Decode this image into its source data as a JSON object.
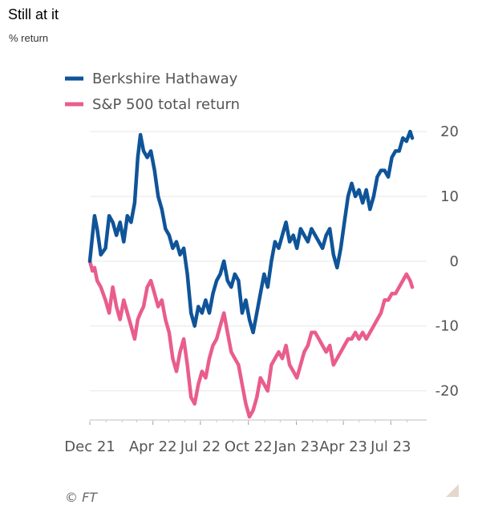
{
  "header": {
    "title": "Still at it",
    "subtitle": "% return"
  },
  "footer": {
    "source": "© FT"
  },
  "chart_data": {
    "type": "line",
    "title": "Still at it",
    "ylabel": "% return",
    "xlabel": "",
    "ylim": [
      -24.5,
      21
    ],
    "xlim": [
      "2021-12-01",
      "2023-08-31"
    ],
    "grid": true,
    "legend_position": "top-left",
    "y_ticks": [
      20,
      10,
      0,
      -10,
      -20
    ],
    "y_tick_labels": [
      "20",
      "10",
      "0",
      "-10",
      "-20"
    ],
    "x_ticks": [
      "2021-12-01",
      "2022-04-01",
      "2022-07-01",
      "2022-10-01",
      "2023-01-01",
      "2023-04-01",
      "2023-07-01"
    ],
    "x_tick_labels": [
      "Dec 21",
      "Apr 22",
      "Jul 22",
      "Oct 22",
      "Jan 23",
      "Apr 23",
      "Jul 23"
    ],
    "series": [
      {
        "name": "Berkshire Hathaway",
        "color": "#0f5499",
        "points": [
          [
            "2021-12-01",
            0
          ],
          [
            "2021-12-06",
            4
          ],
          [
            "2021-12-10",
            7
          ],
          [
            "2021-12-15",
            5
          ],
          [
            "2021-12-22",
            1
          ],
          [
            "2021-12-31",
            2
          ],
          [
            "2022-01-07",
            7
          ],
          [
            "2022-01-14",
            6
          ],
          [
            "2022-01-21",
            4
          ],
          [
            "2022-01-28",
            6
          ],
          [
            "2022-02-04",
            3
          ],
          [
            "2022-02-11",
            7
          ],
          [
            "2022-02-18",
            6
          ],
          [
            "2022-02-25",
            9
          ],
          [
            "2022-03-03",
            16
          ],
          [
            "2022-03-08",
            19.5
          ],
          [
            "2022-03-14",
            17
          ],
          [
            "2022-03-21",
            16
          ],
          [
            "2022-03-28",
            17
          ],
          [
            "2022-04-04",
            14
          ],
          [
            "2022-04-11",
            10
          ],
          [
            "2022-04-18",
            8
          ],
          [
            "2022-04-25",
            5
          ],
          [
            "2022-05-02",
            4
          ],
          [
            "2022-05-09",
            2
          ],
          [
            "2022-05-16",
            3
          ],
          [
            "2022-05-23",
            1
          ],
          [
            "2022-05-30",
            2
          ],
          [
            "2022-06-06",
            -2
          ],
          [
            "2022-06-13",
            -8
          ],
          [
            "2022-06-20",
            -10
          ],
          [
            "2022-06-27",
            -7
          ],
          [
            "2022-07-04",
            -8
          ],
          [
            "2022-07-11",
            -6
          ],
          [
            "2022-07-18",
            -8
          ],
          [
            "2022-07-25",
            -5
          ],
          [
            "2022-08-01",
            -3
          ],
          [
            "2022-08-08",
            -2
          ],
          [
            "2022-08-15",
            0
          ],
          [
            "2022-08-22",
            -3
          ],
          [
            "2022-08-29",
            -4
          ],
          [
            "2022-09-05",
            -2
          ],
          [
            "2022-09-12",
            -3
          ],
          [
            "2022-09-19",
            -8
          ],
          [
            "2022-09-26",
            -6
          ],
          [
            "2022-10-03",
            -9
          ],
          [
            "2022-10-10",
            -11
          ],
          [
            "2022-10-17",
            -8
          ],
          [
            "2022-10-24",
            -5
          ],
          [
            "2022-10-31",
            -2
          ],
          [
            "2022-11-07",
            -4
          ],
          [
            "2022-11-14",
            0
          ],
          [
            "2022-11-21",
            3
          ],
          [
            "2022-11-28",
            2
          ],
          [
            "2022-12-05",
            4
          ],
          [
            "2022-12-12",
            6
          ],
          [
            "2022-12-19",
            3
          ],
          [
            "2022-12-26",
            4
          ],
          [
            "2023-01-02",
            2
          ],
          [
            "2023-01-09",
            5
          ],
          [
            "2023-01-16",
            4
          ],
          [
            "2023-01-23",
            3
          ],
          [
            "2023-01-30",
            5
          ],
          [
            "2023-02-06",
            4
          ],
          [
            "2023-02-13",
            3
          ],
          [
            "2023-02-20",
            2
          ],
          [
            "2023-02-27",
            4
          ],
          [
            "2023-03-06",
            5
          ],
          [
            "2023-03-13",
            1
          ],
          [
            "2023-03-20",
            -1
          ],
          [
            "2023-03-27",
            2
          ],
          [
            "2023-04-03",
            6
          ],
          [
            "2023-04-10",
            10
          ],
          [
            "2023-04-17",
            12
          ],
          [
            "2023-04-24",
            10
          ],
          [
            "2023-05-01",
            11
          ],
          [
            "2023-05-08",
            9
          ],
          [
            "2023-05-15",
            11
          ],
          [
            "2023-05-22",
            8
          ],
          [
            "2023-05-29",
            10
          ],
          [
            "2023-06-05",
            13
          ],
          [
            "2023-06-12",
            14
          ],
          [
            "2023-06-19",
            14
          ],
          [
            "2023-06-26",
            13
          ],
          [
            "2023-07-03",
            16
          ],
          [
            "2023-07-10",
            17
          ],
          [
            "2023-07-17",
            17
          ],
          [
            "2023-07-24",
            19
          ],
          [
            "2023-07-31",
            18.5
          ],
          [
            "2023-08-07",
            20
          ],
          [
            "2023-08-11",
            19
          ]
        ]
      },
      {
        "name": "S&P 500 total return",
        "color": "#e95d8c",
        "points": [
          [
            "2021-12-01",
            0
          ],
          [
            "2021-12-06",
            -1.5
          ],
          [
            "2021-12-10",
            -1
          ],
          [
            "2021-12-15",
            -3
          ],
          [
            "2021-12-22",
            -4
          ],
          [
            "2021-12-31",
            -6
          ],
          [
            "2022-01-07",
            -8
          ],
          [
            "2022-01-14",
            -4
          ],
          [
            "2022-01-21",
            -7
          ],
          [
            "2022-01-28",
            -9
          ],
          [
            "2022-02-04",
            -6
          ],
          [
            "2022-02-11",
            -8
          ],
          [
            "2022-02-18",
            -10
          ],
          [
            "2022-02-25",
            -12
          ],
          [
            "2022-03-03",
            -9
          ],
          [
            "2022-03-08",
            -8
          ],
          [
            "2022-03-14",
            -7
          ],
          [
            "2022-03-21",
            -4
          ],
          [
            "2022-03-28",
            -3
          ],
          [
            "2022-04-04",
            -5
          ],
          [
            "2022-04-11",
            -7
          ],
          [
            "2022-04-18",
            -6
          ],
          [
            "2022-04-25",
            -9
          ],
          [
            "2022-05-02",
            -11
          ],
          [
            "2022-05-09",
            -15
          ],
          [
            "2022-05-16",
            -17
          ],
          [
            "2022-05-23",
            -14
          ],
          [
            "2022-05-30",
            -12
          ],
          [
            "2022-06-06",
            -16
          ],
          [
            "2022-06-13",
            -21
          ],
          [
            "2022-06-20",
            -22
          ],
          [
            "2022-06-27",
            -19
          ],
          [
            "2022-07-04",
            -17
          ],
          [
            "2022-07-11",
            -18
          ],
          [
            "2022-07-18",
            -15
          ],
          [
            "2022-07-25",
            -13
          ],
          [
            "2022-08-01",
            -12
          ],
          [
            "2022-08-08",
            -10
          ],
          [
            "2022-08-15",
            -8
          ],
          [
            "2022-08-22",
            -11
          ],
          [
            "2022-08-29",
            -14
          ],
          [
            "2022-09-05",
            -15
          ],
          [
            "2022-09-12",
            -16
          ],
          [
            "2022-09-19",
            -19
          ],
          [
            "2022-09-26",
            -22
          ],
          [
            "2022-10-03",
            -24
          ],
          [
            "2022-10-10",
            -23
          ],
          [
            "2022-10-17",
            -21
          ],
          [
            "2022-10-24",
            -18
          ],
          [
            "2022-10-31",
            -19
          ],
          [
            "2022-11-07",
            -20
          ],
          [
            "2022-11-14",
            -16
          ],
          [
            "2022-11-21",
            -15
          ],
          [
            "2022-11-28",
            -14
          ],
          [
            "2022-12-05",
            -15
          ],
          [
            "2022-12-12",
            -13
          ],
          [
            "2022-12-19",
            -16
          ],
          [
            "2022-12-26",
            -17
          ],
          [
            "2023-01-02",
            -18
          ],
          [
            "2023-01-09",
            -16
          ],
          [
            "2023-01-16",
            -14
          ],
          [
            "2023-01-23",
            -13
          ],
          [
            "2023-01-30",
            -11
          ],
          [
            "2023-02-06",
            -11
          ],
          [
            "2023-02-13",
            -12
          ],
          [
            "2023-02-20",
            -13
          ],
          [
            "2023-02-27",
            -14
          ],
          [
            "2023-03-06",
            -13
          ],
          [
            "2023-03-13",
            -16
          ],
          [
            "2023-03-20",
            -15
          ],
          [
            "2023-03-27",
            -14
          ],
          [
            "2023-04-03",
            -13
          ],
          [
            "2023-04-10",
            -12
          ],
          [
            "2023-04-17",
            -12
          ],
          [
            "2023-04-24",
            -11
          ],
          [
            "2023-05-01",
            -12
          ],
          [
            "2023-05-08",
            -11
          ],
          [
            "2023-05-15",
            -12
          ],
          [
            "2023-05-22",
            -11
          ],
          [
            "2023-05-29",
            -10
          ],
          [
            "2023-06-05",
            -9
          ],
          [
            "2023-06-12",
            -8
          ],
          [
            "2023-06-19",
            -6
          ],
          [
            "2023-06-26",
            -6
          ],
          [
            "2023-07-03",
            -5
          ],
          [
            "2023-07-10",
            -5
          ],
          [
            "2023-07-17",
            -4
          ],
          [
            "2023-07-24",
            -3
          ],
          [
            "2023-07-31",
            -2
          ],
          [
            "2023-08-07",
            -3
          ],
          [
            "2023-08-11",
            -4
          ]
        ]
      }
    ]
  }
}
